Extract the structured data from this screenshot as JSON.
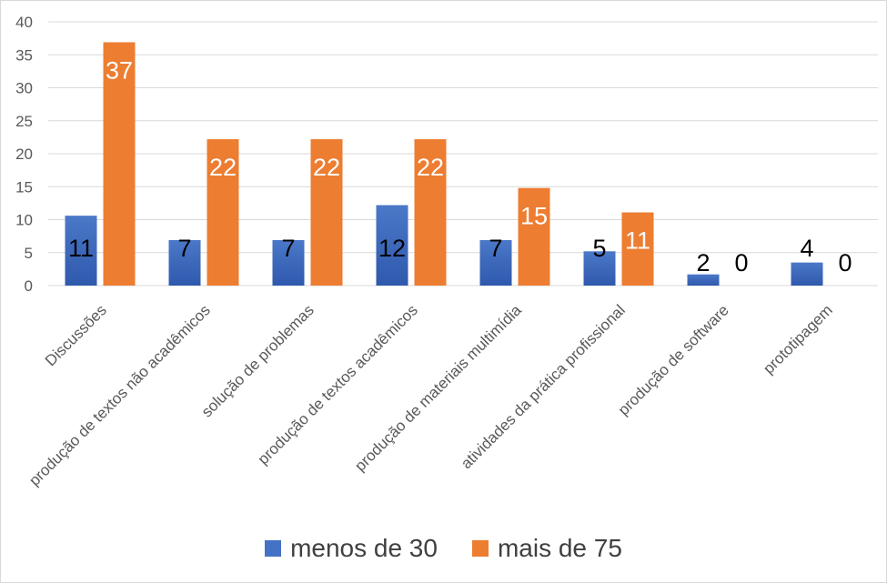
{
  "chart_data": {
    "type": "bar",
    "categories": [
      "Discussões",
      "produção de textos não acadêmicos",
      "solução de problemas",
      "produção de textos acadêmicos",
      "produção de materiais multimídia",
      "atividades da prática profissional",
      "produção de software",
      "prototipagem"
    ],
    "series": [
      {
        "name": "menos de 30",
        "color": "#4472C4",
        "values": [
          11,
          7,
          7,
          12,
          7,
          5,
          2,
          4
        ],
        "bar_heights": [
          10.6,
          6.9,
          6.9,
          12.2,
          6.9,
          5.2,
          1.7,
          3.5
        ]
      },
      {
        "name": "mais de 75",
        "color": "#ED7D31",
        "values": [
          37,
          22,
          22,
          22,
          15,
          11,
          0,
          0
        ],
        "bar_heights": [
          36.9,
          22.2,
          22.2,
          22.2,
          14.8,
          11.1,
          0,
          0
        ]
      }
    ],
    "yticks": [
      "0",
      "5",
      "10",
      "15",
      "20",
      "25",
      "30",
      "35",
      "40"
    ],
    "ylim": [
      0,
      40
    ],
    "grid": true,
    "legend": "bottom",
    "title": "",
    "xlabel": "",
    "ylabel": ""
  }
}
